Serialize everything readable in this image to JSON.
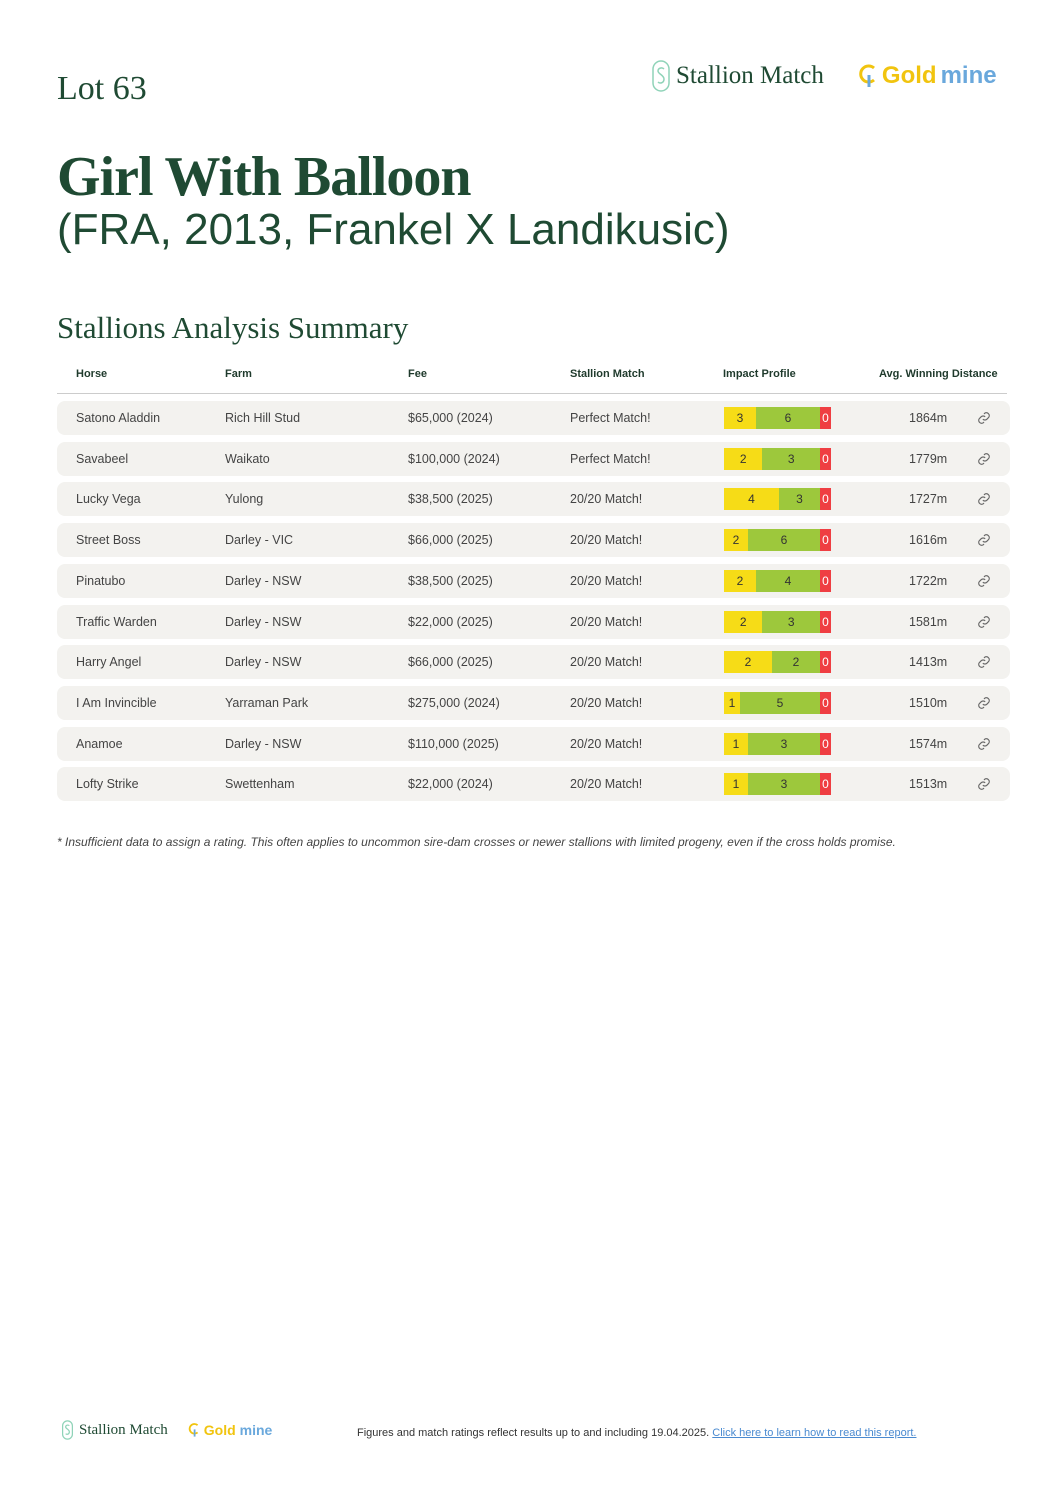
{
  "header": {
    "lot": "Lot 63",
    "logo_stallion": "Stallion Match",
    "logo_gold_a": "Gold",
    "logo_gold_b": "mine"
  },
  "horse": {
    "name": "Girl With Balloon",
    "details": "(FRA, 2013, Frankel X Landikusic)"
  },
  "section_title": "Stallions Analysis Summary",
  "columns": [
    "Horse",
    "Farm",
    "Fee",
    "Stallion Match",
    "Impact Profile",
    "Avg. Winning Distance"
  ],
  "colors": {
    "yellow": "#f6dc17",
    "green": "#9dc83c",
    "red": "#ef3e42",
    "brand": "#1f4a33"
  },
  "rows": [
    {
      "horse": "Satono Aladdin",
      "farm": "Rich Hill Stud",
      "fee": "$65,000 (2024)",
      "match": "Perfect Match!",
      "impact": [
        3,
        6,
        0
      ],
      "distance": "1864m"
    },
    {
      "horse": "Savabeel",
      "farm": "Waikato",
      "fee": "$100,000 (2024)",
      "match": "Perfect Match!",
      "impact": [
        2,
        3,
        0
      ],
      "distance": "1779m"
    },
    {
      "horse": "Lucky Vega",
      "farm": "Yulong",
      "fee": "$38,500 (2025)",
      "match": "20/20 Match!",
      "impact": [
        4,
        3,
        0
      ],
      "distance": "1727m"
    },
    {
      "horse": "Street Boss",
      "farm": "Darley - VIC",
      "fee": "$66,000 (2025)",
      "match": "20/20 Match!",
      "impact": [
        2,
        6,
        0
      ],
      "distance": "1616m"
    },
    {
      "horse": "Pinatubo",
      "farm": "Darley - NSW",
      "fee": "$38,500 (2025)",
      "match": "20/20 Match!",
      "impact": [
        2,
        4,
        0
      ],
      "distance": "1722m"
    },
    {
      "horse": "Traffic Warden",
      "farm": "Darley - NSW",
      "fee": "$22,000 (2025)",
      "match": "20/20 Match!",
      "impact": [
        2,
        3,
        0
      ],
      "distance": "1581m"
    },
    {
      "horse": "Harry Angel",
      "farm": "Darley - NSW",
      "fee": "$66,000 (2025)",
      "match": "20/20 Match!",
      "impact": [
        2,
        2,
        0
      ],
      "distance": "1413m"
    },
    {
      "horse": "I Am Invincible",
      "farm": "Yarraman Park",
      "fee": "$275,000 (2024)",
      "match": "20/20 Match!",
      "impact": [
        1,
        5,
        0
      ],
      "distance": "1510m"
    },
    {
      "horse": "Anamoe",
      "farm": "Darley - NSW",
      "fee": "$110,000 (2025)",
      "match": "20/20 Match!",
      "impact": [
        1,
        3,
        0
      ],
      "distance": "1574m"
    },
    {
      "horse": "Lofty Strike",
      "farm": "Swettenham",
      "fee": "$22,000 (2024)",
      "match": "20/20 Match!",
      "impact": [
        1,
        3,
        0
      ],
      "distance": "1513m"
    }
  ],
  "footnote": "* Insufficient data to assign a rating. This often applies to uncommon sire-dam crosses or newer stallions with limited progeny, even if the cross holds promise.",
  "footer": {
    "text": "Figures and match ratings reflect results up to and including 19.04.2025. ",
    "link": "Click here to learn how to read this report."
  }
}
